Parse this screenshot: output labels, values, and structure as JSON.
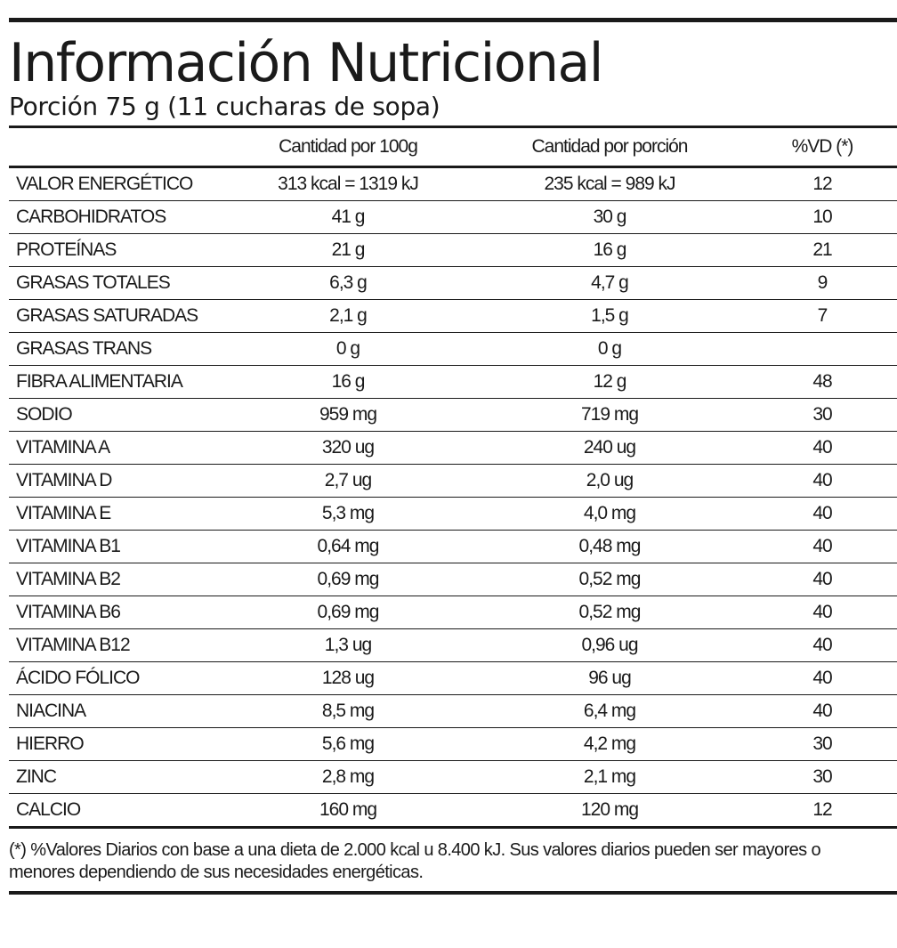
{
  "label": {
    "title": "Información Nutricional",
    "serving": "Porción 75 g (11 cucharas de sopa)",
    "headers": {
      "nutrient": "",
      "per_100g": "Cantidad por 100g",
      "per_portion": "Cantidad por porción",
      "dv": "%VD (*)"
    },
    "rows": [
      {
        "name": "VALOR ENERGÉTICO",
        "per_100g": "313 kcal = 1319 kJ",
        "per_portion": "235 kcal = 989 kJ",
        "dv": "12"
      },
      {
        "name": "CARBOHIDRATOS",
        "per_100g": "41 g",
        "per_portion": "30 g",
        "dv": "10"
      },
      {
        "name": "PROTEÍNAS",
        "per_100g": "21 g",
        "per_portion": "16 g",
        "dv": "21"
      },
      {
        "name": "GRASAS TOTALES",
        "per_100g": "6,3 g",
        "per_portion": "4,7 g",
        "dv": "9"
      },
      {
        "name": "GRASAS SATURADAS",
        "per_100g": "2,1 g",
        "per_portion": "1,5 g",
        "dv": "7"
      },
      {
        "name": "GRASAS TRANS",
        "per_100g": "0 g",
        "per_portion": "0 g",
        "dv": ""
      },
      {
        "name": "FIBRA ALIMENTARIA",
        "per_100g": "16 g",
        "per_portion": "12 g",
        "dv": "48"
      },
      {
        "name": "SODIO",
        "per_100g": "959 mg",
        "per_portion": "719 mg",
        "dv": "30"
      },
      {
        "name": "VITAMINA A",
        "per_100g": "320 ug",
        "per_portion": "240 ug",
        "dv": "40"
      },
      {
        "name": "VITAMINA D",
        "per_100g": "2,7 ug",
        "per_portion": "2,0 ug",
        "dv": "40"
      },
      {
        "name": "VITAMINA E",
        "per_100g": "5,3 mg",
        "per_portion": "4,0 mg",
        "dv": "40"
      },
      {
        "name": "VITAMINA B1",
        "per_100g": "0,64 mg",
        "per_portion": "0,48 mg",
        "dv": "40"
      },
      {
        "name": "VITAMINA B2",
        "per_100g": "0,69 mg",
        "per_portion": "0,52 mg",
        "dv": "40"
      },
      {
        "name": "VITAMINA B6",
        "per_100g": "0,69 mg",
        "per_portion": "0,52 mg",
        "dv": "40"
      },
      {
        "name": "VITAMINA B12",
        "per_100g": "1,3 ug",
        "per_portion": "0,96 ug",
        "dv": "40"
      },
      {
        "name": "ÁCIDO FÓLICO",
        "per_100g": "128 ug",
        "per_portion": "96 ug",
        "dv": "40"
      },
      {
        "name": "NIACINA",
        "per_100g": "8,5 mg",
        "per_portion": "6,4 mg",
        "dv": "40"
      },
      {
        "name": "HIERRO",
        "per_100g": "5,6 mg",
        "per_portion": "4,2 mg",
        "dv": "30"
      },
      {
        "name": "ZINC",
        "per_100g": "2,8 mg",
        "per_portion": "2,1 mg",
        "dv": "30"
      },
      {
        "name": "CALCIO",
        "per_100g": "160 mg",
        "per_portion": "120 mg",
        "dv": "12"
      }
    ],
    "footnote": "(*) %Valores Diarios con base a una dieta de 2.000 kcal u 8.400 kJ. Sus valores diarios pueden ser mayores o menores dependiendo de sus necesidades energéticas."
  },
  "colors": {
    "text": "#1a1a1a",
    "background": "#ffffff"
  }
}
